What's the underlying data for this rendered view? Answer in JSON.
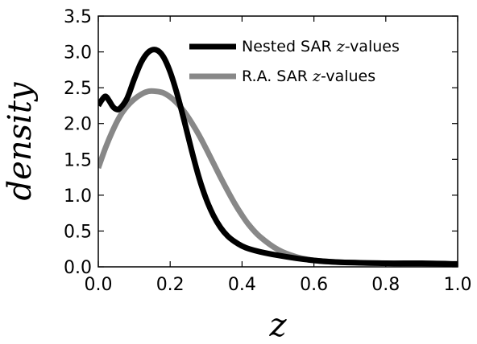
{
  "chart_data": {
    "type": "line",
    "title": "",
    "xlabel": "z",
    "ylabel": "density",
    "xlim": [
      0.0,
      1.0
    ],
    "ylim": [
      0.0,
      3.5
    ],
    "x_ticks": [
      "0.0",
      "0.2",
      "0.4",
      "0.6",
      "0.8",
      "1.0"
    ],
    "y_ticks": [
      "0.0",
      "0.5",
      "1.0",
      "1.5",
      "2.0",
      "2.5",
      "3.0",
      "3.5"
    ],
    "grid": false,
    "legend_position": "top-right",
    "series": [
      {
        "name": "Nested SAR z-values",
        "legend_prefix": "Nested SAR ",
        "legend_math": "z",
        "legend_suffix": "-values",
        "color": "#000000",
        "x": [
          0.0,
          0.01,
          0.02,
          0.03,
          0.04,
          0.05,
          0.06,
          0.08,
          0.1,
          0.12,
          0.14,
          0.16,
          0.18,
          0.2,
          0.22,
          0.24,
          0.26,
          0.28,
          0.3,
          0.32,
          0.34,
          0.36,
          0.38,
          0.4,
          0.42,
          0.45,
          0.5,
          0.55,
          0.6,
          0.65,
          0.7,
          0.8,
          0.9,
          1.0
        ],
        "y": [
          2.25,
          2.33,
          2.38,
          2.32,
          2.24,
          2.2,
          2.21,
          2.35,
          2.62,
          2.86,
          3.0,
          3.03,
          2.94,
          2.72,
          2.4,
          2.02,
          1.62,
          1.25,
          0.95,
          0.72,
          0.55,
          0.43,
          0.35,
          0.29,
          0.25,
          0.21,
          0.16,
          0.12,
          0.09,
          0.07,
          0.06,
          0.05,
          0.05,
          0.04
        ]
      },
      {
        "name": "R.A. SAR z-values",
        "legend_prefix": "R.A. SAR ",
        "legend_math": "z",
        "legend_suffix": "-values",
        "color": "#888888",
        "x": [
          0.0,
          0.02,
          0.04,
          0.06,
          0.08,
          0.1,
          0.12,
          0.14,
          0.16,
          0.18,
          0.2,
          0.22,
          0.24,
          0.26,
          0.28,
          0.3,
          0.32,
          0.34,
          0.36,
          0.38,
          0.4,
          0.42,
          0.45,
          0.5,
          0.55,
          0.6,
          0.65,
          0.7,
          0.8,
          0.9,
          1.0
        ],
        "y": [
          1.38,
          1.66,
          1.9,
          2.1,
          2.24,
          2.34,
          2.41,
          2.45,
          2.45,
          2.43,
          2.37,
          2.28,
          2.16,
          2.01,
          1.84,
          1.65,
          1.45,
          1.25,
          1.06,
          0.88,
          0.72,
          0.58,
          0.42,
          0.24,
          0.14,
          0.09,
          0.07,
          0.06,
          0.05,
          0.04,
          0.04
        ]
      }
    ]
  }
}
